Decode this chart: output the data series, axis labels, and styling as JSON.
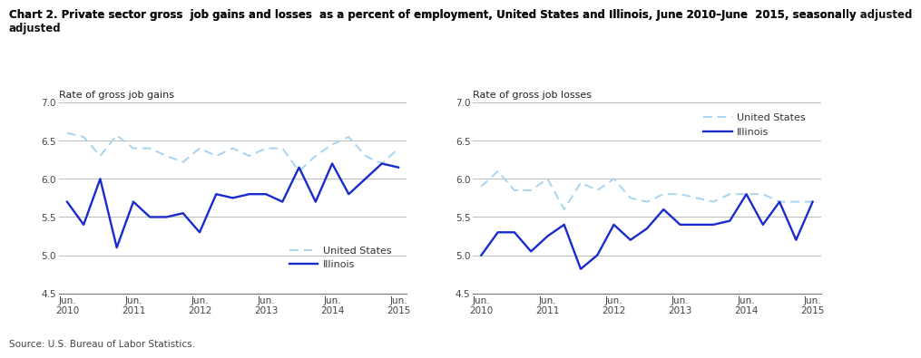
{
  "title_line1": "Chart 2. Private sector gross  job gains and losses  as a percent of employment, United States and Illinois, June 2010–June  2015, seasonally adjusted",
  "left_ylabel": "Rate of gross job gains",
  "right_ylabel": "Rate of gross job losses",
  "source": "Source: U.S. Bureau of Labor Statistics.",
  "x_labels": [
    "Jun.\n2010",
    "Jun.\n2011",
    "Jun.\n2012",
    "Jun.\n2013",
    "Jun.\n2014",
    "Jun.\n2015"
  ],
  "x_positions": [
    0,
    4,
    8,
    12,
    16,
    20
  ],
  "ylim": [
    4.5,
    7.0
  ],
  "yticks": [
    4.5,
    5.0,
    5.5,
    6.0,
    6.5,
    7.0
  ],
  "gains_us": [
    6.6,
    6.55,
    6.3,
    6.57,
    6.4,
    6.4,
    6.3,
    6.22,
    6.4,
    6.3,
    6.4,
    6.3,
    6.4,
    6.4,
    6.1,
    6.3,
    6.45,
    6.55,
    6.3,
    6.2,
    6.4
  ],
  "gains_il": [
    5.7,
    5.4,
    6.0,
    5.1,
    5.7,
    5.5,
    5.5,
    5.55,
    5.3,
    5.8,
    5.75,
    5.8,
    5.8,
    5.7,
    6.15,
    5.7,
    6.2,
    5.8,
    6.0,
    6.2,
    6.15
  ],
  "losses_us": [
    5.9,
    6.1,
    5.85,
    5.85,
    6.0,
    5.6,
    5.95,
    5.85,
    6.0,
    5.75,
    5.7,
    5.8,
    5.8,
    5.75,
    5.7,
    5.8,
    5.8,
    5.8,
    5.7,
    5.7,
    5.7
  ],
  "losses_il": [
    5.0,
    5.3,
    5.3,
    5.05,
    5.25,
    5.4,
    4.82,
    5.0,
    5.4,
    5.2,
    5.35,
    5.6,
    5.4,
    5.4,
    5.4,
    5.45,
    5.8,
    5.4,
    5.7,
    5.2,
    5.7
  ],
  "us_color": "#a8d4f0",
  "il_color": "#1a2bcc",
  "us_lw": 1.4,
  "il_lw": 1.7,
  "title_fontsize": 8.5,
  "label_fontsize": 8.0,
  "tick_fontsize": 7.5,
  "source_fontsize": 7.5,
  "legend_fontsize": 8.0
}
